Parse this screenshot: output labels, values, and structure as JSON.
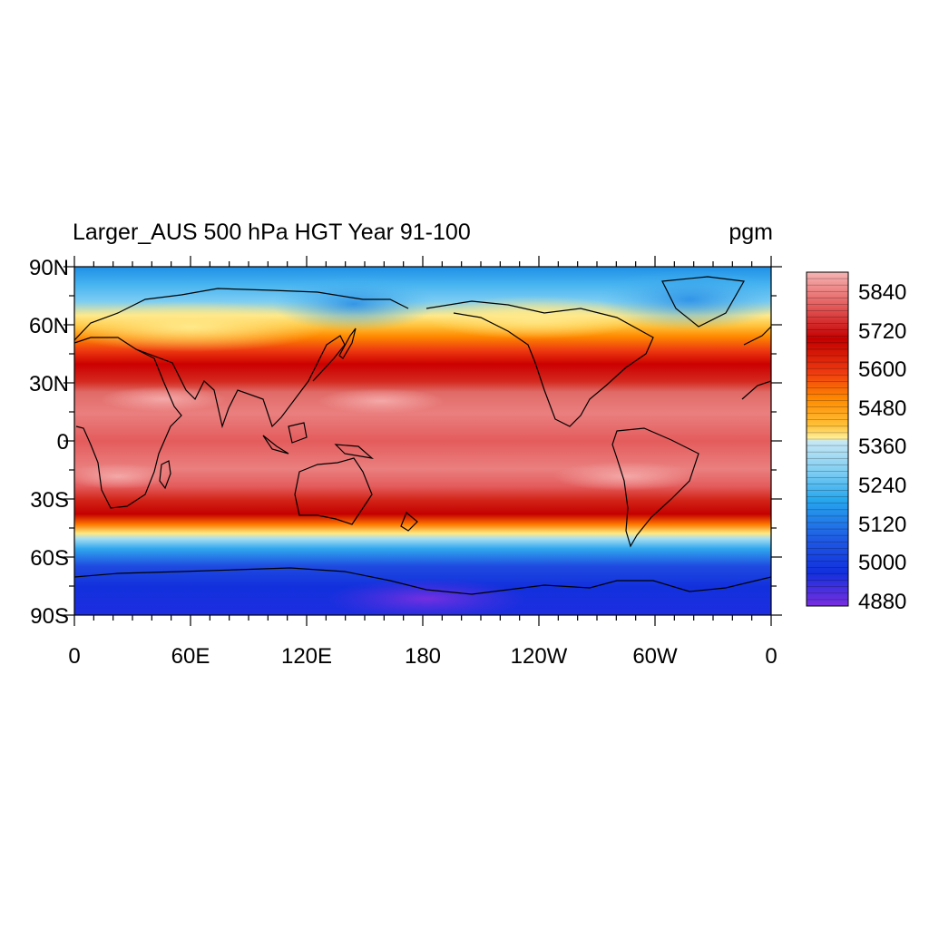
{
  "header": {
    "title": "Larger_AUS 500 hPa HGT Year 91-100",
    "units": "pgm"
  },
  "map": {
    "lat_tick_labels": [
      "90N",
      "60N",
      "30N",
      "0",
      "30S",
      "60S",
      "90S"
    ],
    "lon_tick_labels": [
      "0",
      "60E",
      "120E",
      "180",
      "120W",
      "60W",
      "0"
    ]
  },
  "colorbar": {
    "labels": [
      "5840",
      "5720",
      "5600",
      "5480",
      "5360",
      "5240",
      "5120",
      "5000",
      "4880"
    ]
  },
  "chart_data": {
    "type": "heatmap",
    "title": "Larger_AUS 500 hPa HGT Year 91-100",
    "units": "pgm",
    "x_range": [
      0,
      360
    ],
    "y_range": [
      -90,
      90
    ],
    "x_ticks": [
      "0",
      "60E",
      "120E",
      "180",
      "120W",
      "60W",
      "0"
    ],
    "y_ticks": [
      "90N",
      "60N",
      "30N",
      "0",
      "30S",
      "60S",
      "90S"
    ],
    "colorbar_ticks": [
      4880,
      5000,
      5120,
      5240,
      5360,
      5480,
      5600,
      5720,
      5840
    ],
    "colorbar_range": [
      4860,
      5900
    ],
    "colorbar_position": "right",
    "field_profile_zonal_mean": [
      {
        "lat": 90,
        "value": 5150
      },
      {
        "lat": 70,
        "value": 5300
      },
      {
        "lat": 55,
        "value": 5560
      },
      {
        "lat": 40,
        "value": 5740
      },
      {
        "lat": 30,
        "value": 5820
      },
      {
        "lat": 15,
        "value": 5860
      },
      {
        "lat": 0,
        "value": 5850
      },
      {
        "lat": -15,
        "value": 5860
      },
      {
        "lat": -30,
        "value": 5790
      },
      {
        "lat": -40,
        "value": 5700
      },
      {
        "lat": -52,
        "value": 5420
      },
      {
        "lat": -60,
        "value": 5150
      },
      {
        "lat": -70,
        "value": 5000
      },
      {
        "lat": -90,
        "value": 4930
      }
    ]
  }
}
